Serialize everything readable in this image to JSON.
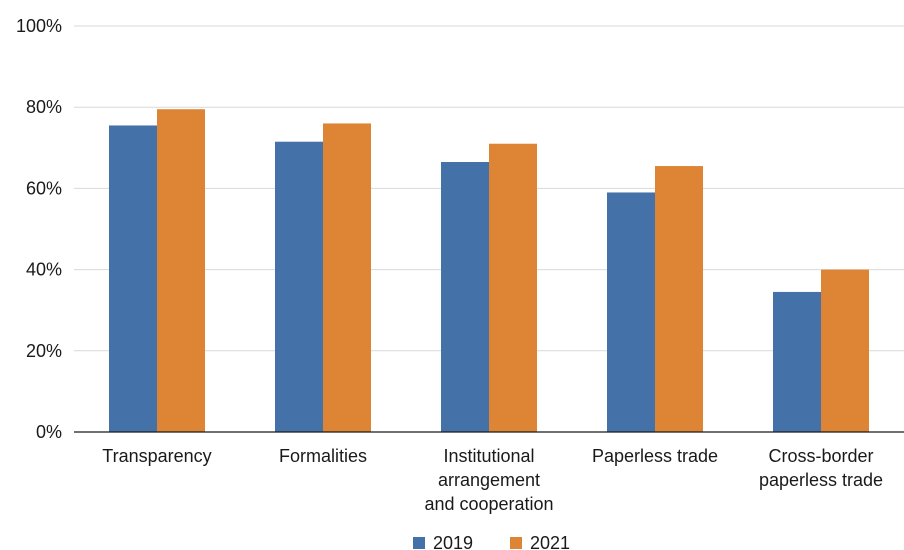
{
  "chart_data": {
    "type": "bar",
    "categories": [
      [
        "Transparency"
      ],
      [
        "Formalities"
      ],
      [
        "Institutional",
        "arrangement",
        "and cooperation"
      ],
      [
        "Paperless trade"
      ],
      [
        "Cross-border",
        "paperless trade"
      ]
    ],
    "series": [
      {
        "name": "2019",
        "color": "#4472a8",
        "values": [
          75.5,
          71.5,
          66.5,
          59,
          34.5
        ]
      },
      {
        "name": "2021",
        "color": "#dd8435",
        "values": [
          79.5,
          76,
          71,
          65.5,
          40
        ]
      }
    ],
    "ylim": [
      0,
      100
    ],
    "yticks": [
      0,
      20,
      40,
      60,
      80,
      100
    ],
    "ytick_labels": [
      "0%",
      "20%",
      "40%",
      "60%",
      "80%",
      "100%"
    ],
    "grid": true,
    "legend_position": "bottom-center"
  }
}
